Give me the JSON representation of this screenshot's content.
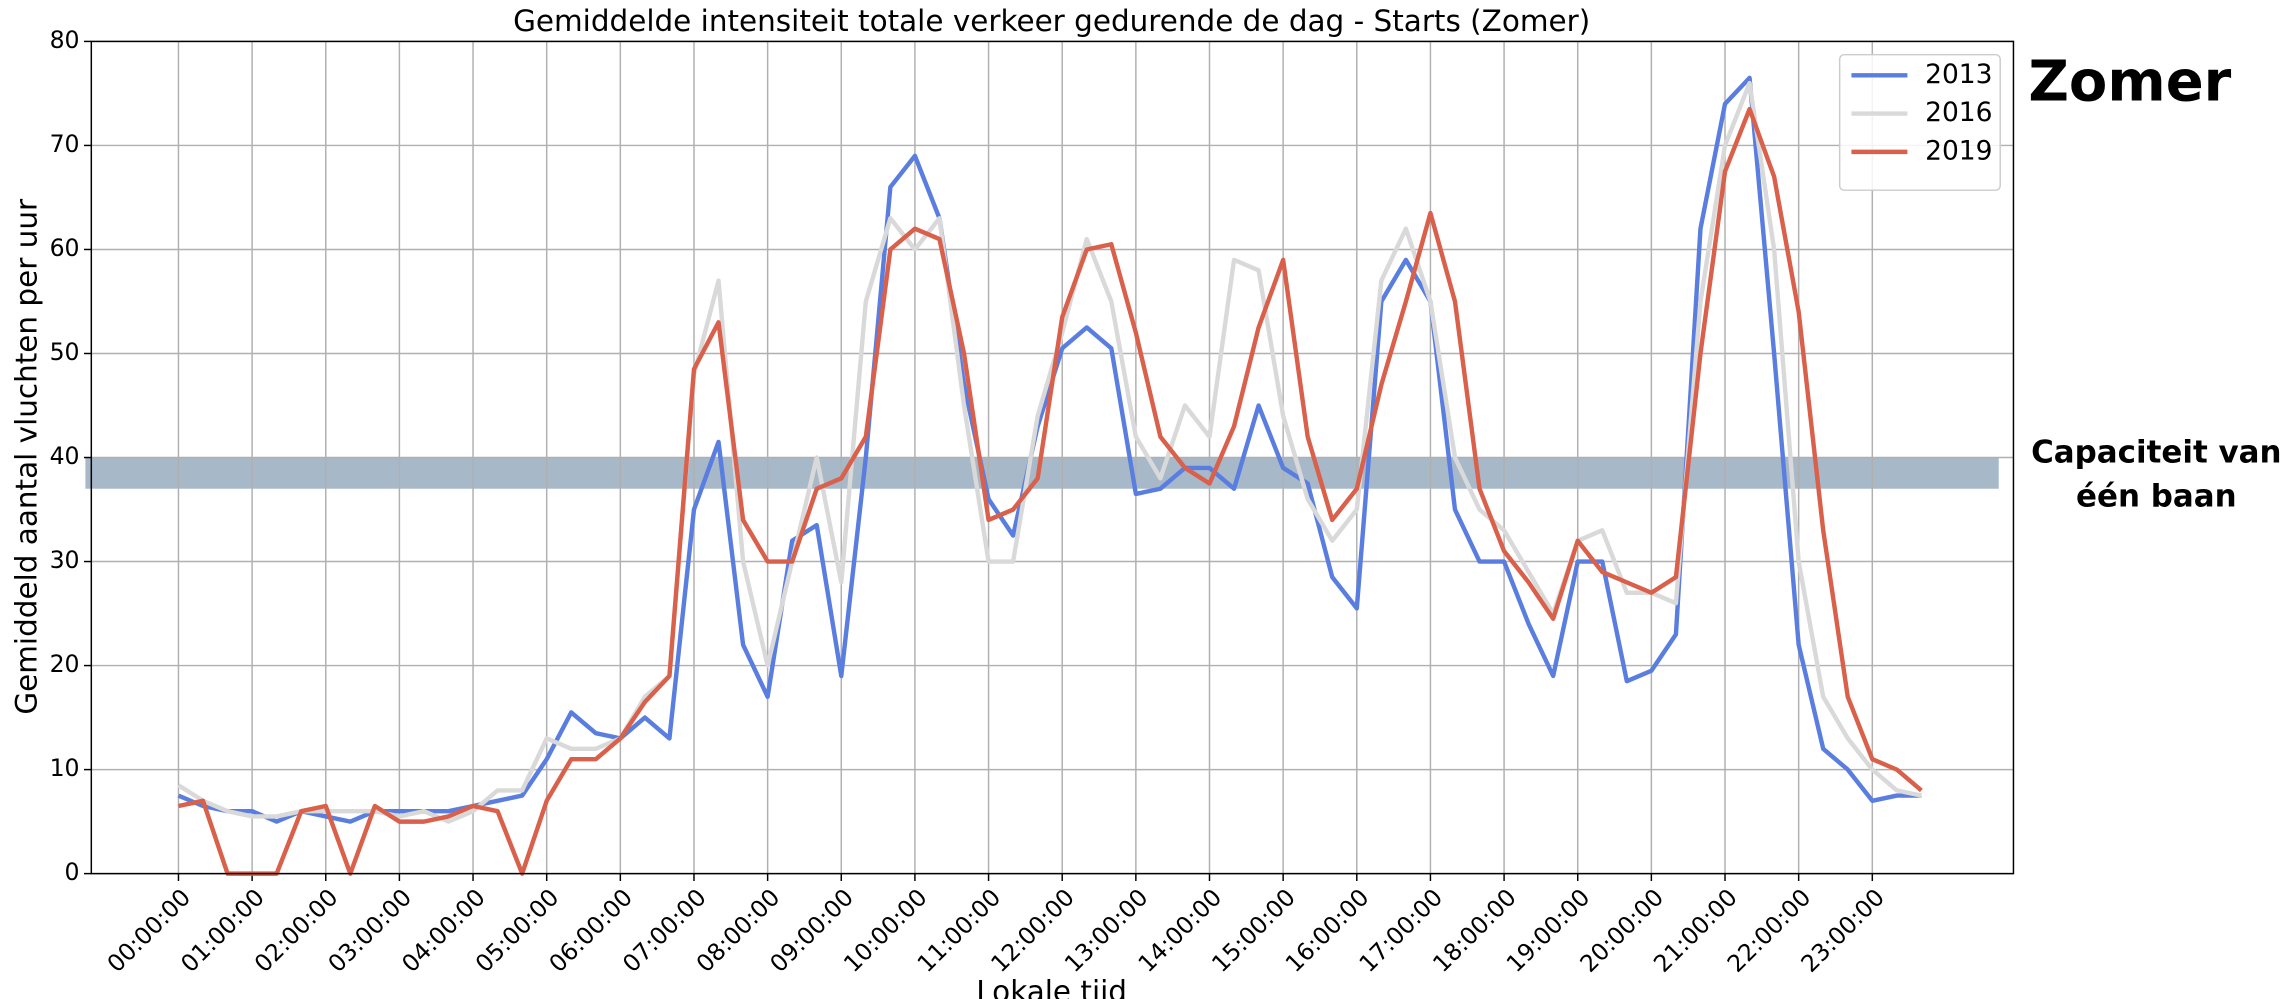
{
  "chart_data": {
    "type": "line",
    "title": "Gemiddelde intensiteit totale verkeer gedurende de dag - Starts (Zomer)",
    "xlabel": "Lokale tijd",
    "ylabel": "Gemiddeld aantal vluchten per uur",
    "x": [
      0,
      20,
      40,
      60,
      80,
      100,
      120,
      140,
      160,
      180,
      200,
      220,
      240,
      260,
      280,
      300,
      320,
      340,
      360,
      380,
      400,
      420,
      440,
      460,
      480,
      500,
      520,
      540,
      560,
      580,
      600,
      620,
      640,
      660,
      680,
      700,
      720,
      740,
      760,
      780,
      800,
      820,
      840,
      860,
      880,
      900,
      920,
      940,
      960,
      980,
      1000,
      1020,
      1040,
      1060,
      1080,
      1100,
      1120,
      1140,
      1160,
      1180,
      1200,
      1220,
      1240,
      1260,
      1280,
      1300,
      1320,
      1340,
      1360,
      1380,
      1400,
      1420
    ],
    "xlim": [
      -71,
      1495
    ],
    "xticks": [
      {
        "value": 0,
        "label": "00:00:00"
      },
      {
        "value": 60,
        "label": "01:00:00"
      },
      {
        "value": 120,
        "label": "02:00:00"
      },
      {
        "value": 180,
        "label": "03:00:00"
      },
      {
        "value": 240,
        "label": "04:00:00"
      },
      {
        "value": 300,
        "label": "05:00:00"
      },
      {
        "value": 360,
        "label": "06:00:00"
      },
      {
        "value": 420,
        "label": "07:00:00"
      },
      {
        "value": 480,
        "label": "08:00:00"
      },
      {
        "value": 540,
        "label": "09:00:00"
      },
      {
        "value": 600,
        "label": "10:00:00"
      },
      {
        "value": 660,
        "label": "11:00:00"
      },
      {
        "value": 720,
        "label": "12:00:00"
      },
      {
        "value": 780,
        "label": "13:00:00"
      },
      {
        "value": 840,
        "label": "14:00:00"
      },
      {
        "value": 900,
        "label": "15:00:00"
      },
      {
        "value": 960,
        "label": "16:00:00"
      },
      {
        "value": 1020,
        "label": "17:00:00"
      },
      {
        "value": 1080,
        "label": "18:00:00"
      },
      {
        "value": 1140,
        "label": "19:00:00"
      },
      {
        "value": 1200,
        "label": "20:00:00"
      },
      {
        "value": 1260,
        "label": "21:00:00"
      },
      {
        "value": 1320,
        "label": "22:00:00"
      },
      {
        "value": 1380,
        "label": "23:00:00"
      }
    ],
    "ylim": [
      0,
      80
    ],
    "yticks": [
      0,
      10,
      20,
      30,
      40,
      50,
      60,
      70,
      80
    ],
    "grid": true,
    "legend": "upper right",
    "series": [
      {
        "name": "2013",
        "color": "#5a7ee0",
        "values": [
          7.5,
          6.5,
          6,
          6,
          5,
          6,
          5.5,
          5,
          6,
          6,
          6,
          6,
          6.5,
          7,
          7.5,
          11,
          15.5,
          13.5,
          13,
          15,
          13,
          35,
          41.5,
          22,
          17,
          32,
          33.5,
          19,
          40,
          66,
          69,
          63,
          47,
          36,
          32.5,
          43,
          50.5,
          52.5,
          50.5,
          36.5,
          37,
          39,
          39,
          37,
          45,
          39,
          37.5,
          28.5,
          25.5,
          55,
          59,
          55,
          35,
          30,
          30,
          24,
          19,
          30,
          30,
          18.5,
          19.5,
          23,
          62,
          74,
          76.5,
          50,
          22,
          12,
          10,
          7,
          7.5,
          7.5
        ]
      },
      {
        "name": "2016",
        "color": "#d9d9d9",
        "values": [
          8.5,
          7,
          6,
          5.5,
          5.5,
          6,
          6,
          6,
          6,
          5.5,
          6,
          5,
          6,
          8,
          8,
          13,
          12,
          12,
          13,
          17,
          19,
          48,
          57,
          30,
          20,
          30,
          40,
          28,
          55,
          63,
          60,
          63,
          45,
          30,
          30,
          44,
          52,
          61,
          55,
          42,
          38,
          45,
          42,
          59,
          58,
          44,
          36,
          32,
          35,
          57,
          62,
          55,
          40,
          35,
          33,
          29,
          25,
          32,
          33,
          27,
          27,
          26,
          55,
          70,
          76,
          60,
          30,
          17,
          13,
          10,
          8,
          7.5
        ]
      },
      {
        "name": "2019",
        "color": "#d9604a",
        "values": [
          6.5,
          7,
          0,
          0,
          0,
          6,
          6.5,
          0,
          6.5,
          5,
          5,
          5.5,
          6.5,
          6,
          0,
          7,
          11,
          11,
          13,
          16.5,
          19,
          48.5,
          53,
          34,
          30,
          30,
          37,
          38,
          42,
          60,
          62,
          61,
          50,
          34,
          35,
          38,
          53.5,
          60,
          60.5,
          52,
          42,
          39,
          37.5,
          43,
          52.5,
          59,
          42,
          34,
          37,
          47,
          55,
          63.5,
          55,
          37,
          31,
          28,
          24.5,
          32,
          29,
          28,
          27,
          28.5,
          50,
          67.5,
          73.5,
          67,
          54,
          33,
          17,
          11,
          10,
          8
        ]
      }
    ],
    "band": {
      "from": 37,
      "to": 40,
      "color": "#a7b8c9"
    },
    "label": "Zomer",
    "label_color": "#f57f17",
    "annotation_lines": [
      "Capaciteit van",
      "één baan"
    ]
  }
}
